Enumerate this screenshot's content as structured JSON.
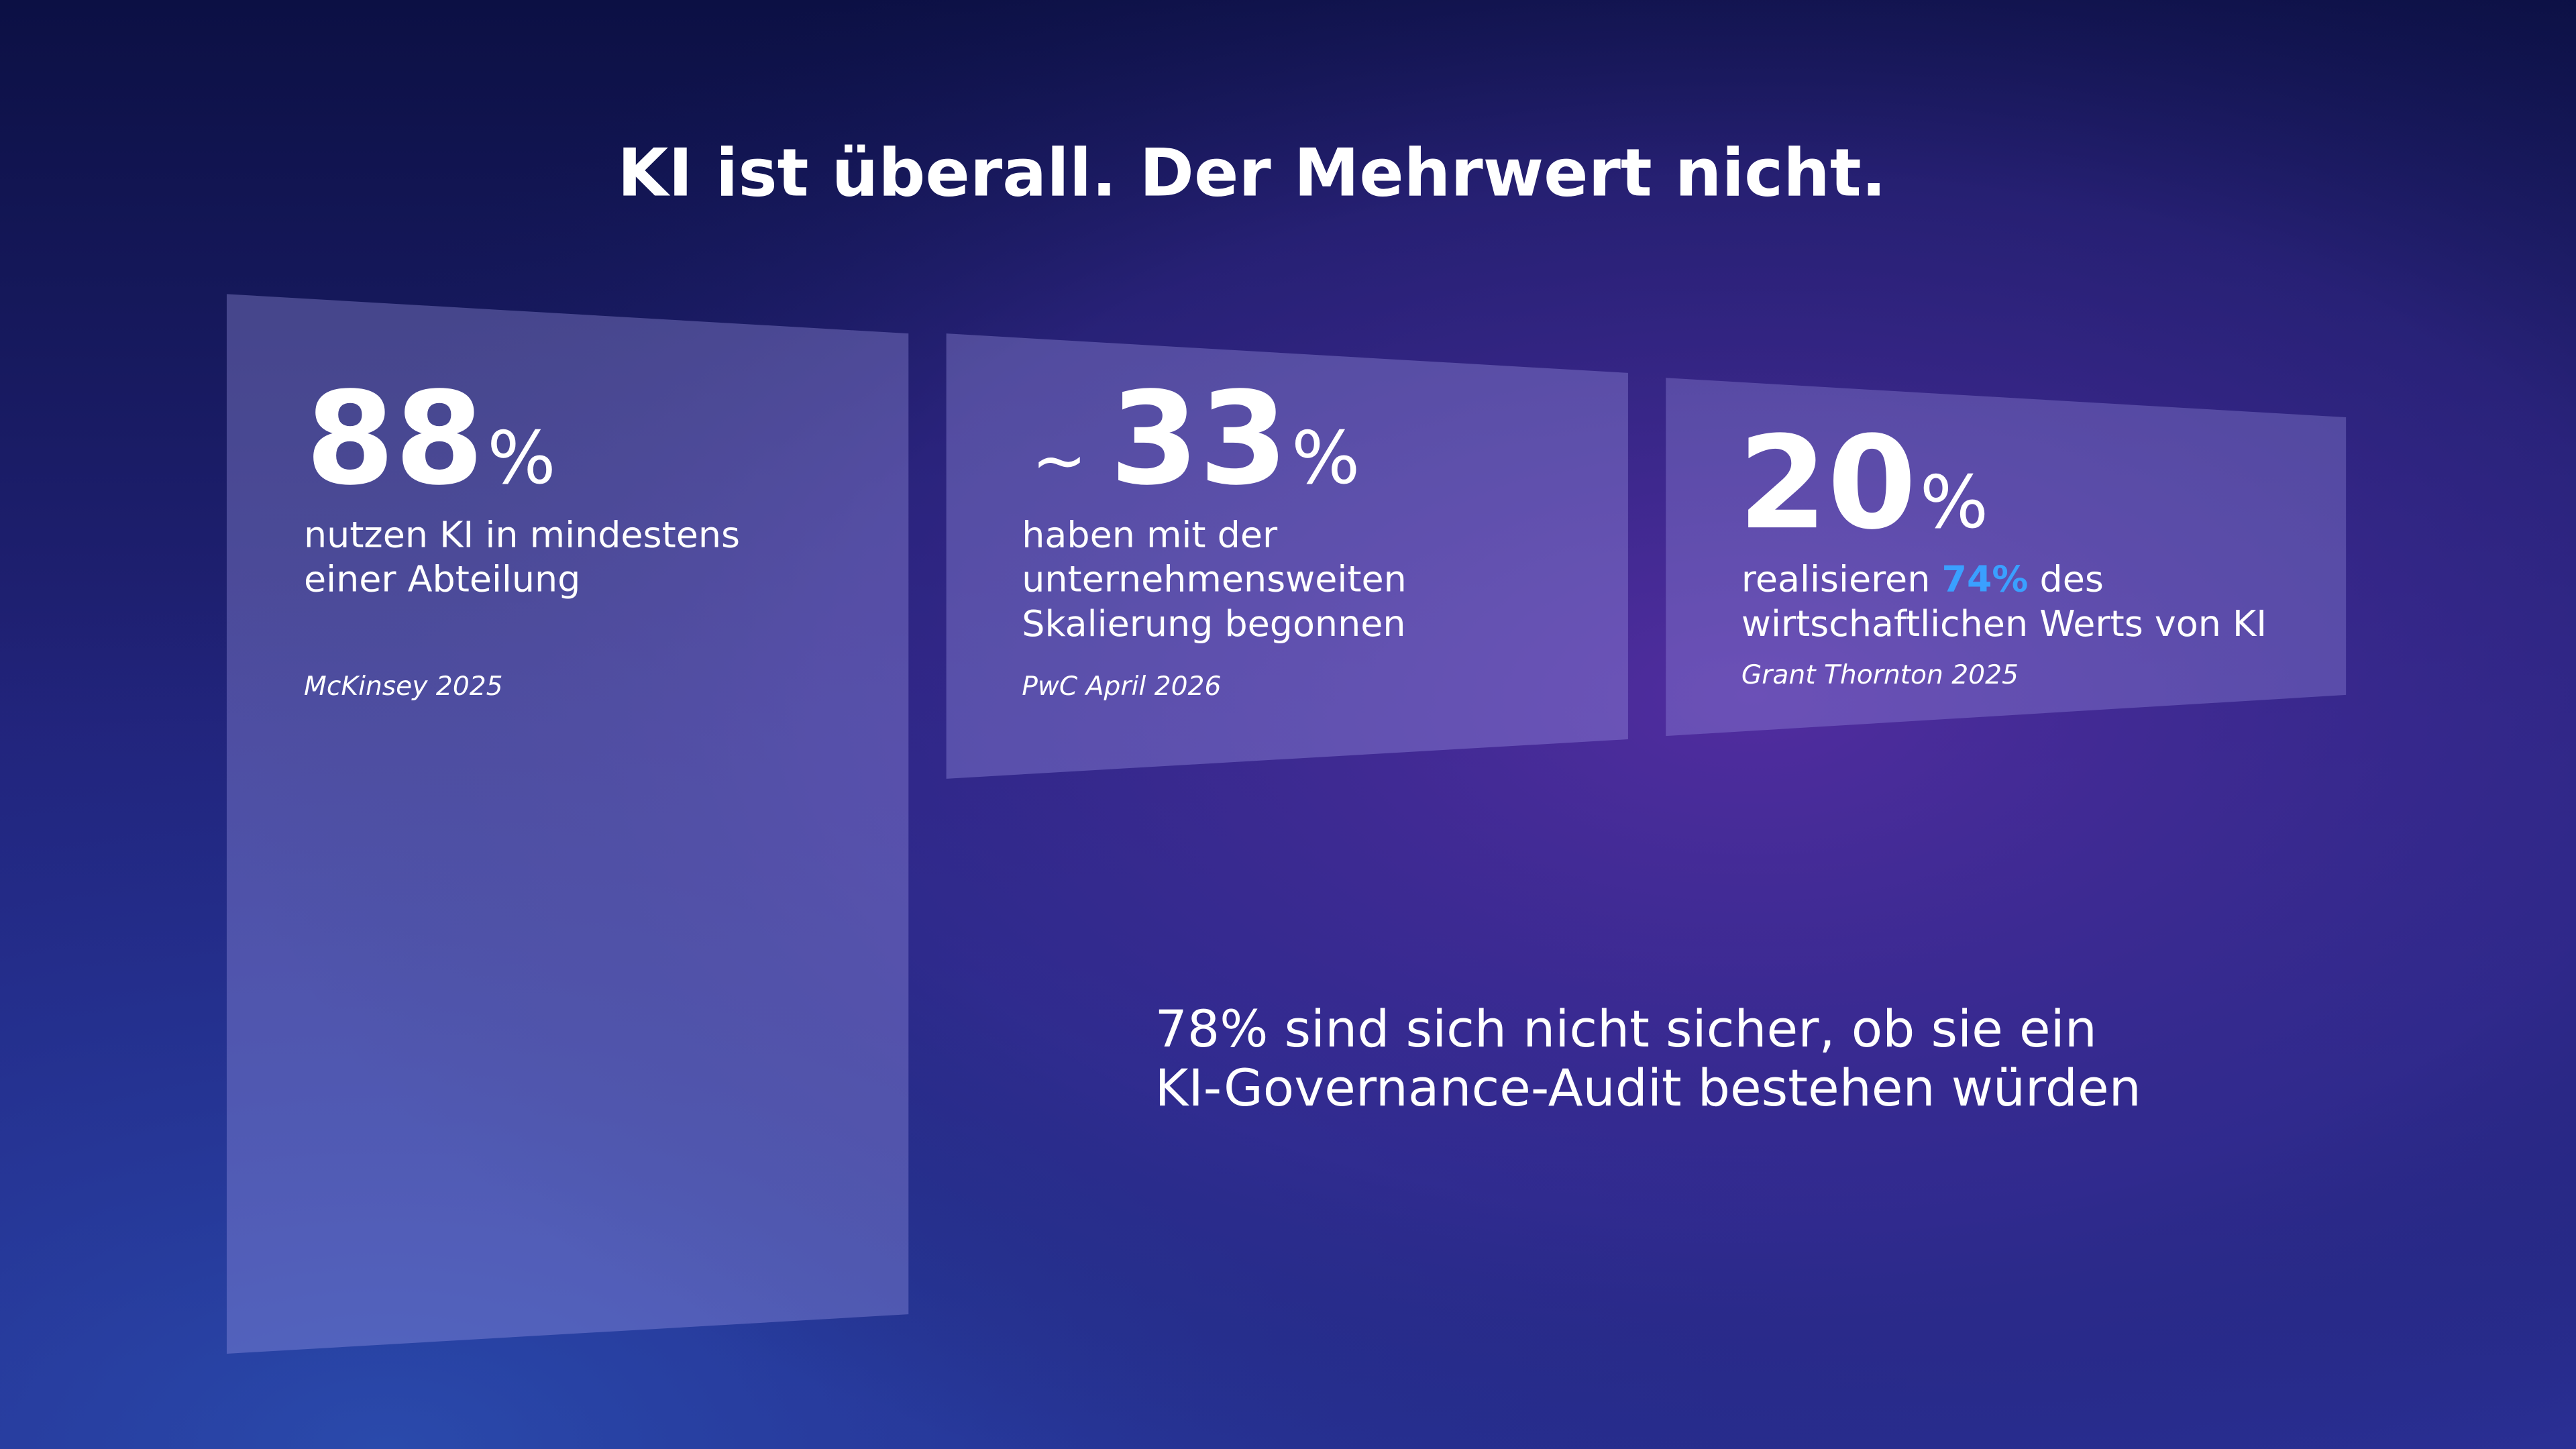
{
  "title": "KI ist überall. Der Mehrwert nicht.",
  "cards": [
    {
      "number": "88",
      "unit": "%",
      "lines": [
        [
          "nutzen KI in mindestens"
        ],
        [
          "einer Abteilung"
        ]
      ],
      "source": "McKinsey 2025"
    },
    {
      "prefix": "~",
      "number": "33",
      "unit": "%",
      "lines": [
        [
          "haben mit der"
        ],
        [
          "unternehmensweiten"
        ],
        [
          "Skalierung begonnen"
        ]
      ],
      "source": "PwC April 2026"
    },
    {
      "number": "20",
      "unit": "%",
      "lines": [
        [
          "realisieren",
          "74%",
          "des"
        ],
        [
          "wirtschaftlichen Werts von KI"
        ]
      ],
      "source": "Grant Thornton 2025"
    }
  ],
  "statement_lines": [
    "78% sind sich nicht sicher, ob sie ein",
    "KI-Governance-Audit bestehen würden"
  ]
}
